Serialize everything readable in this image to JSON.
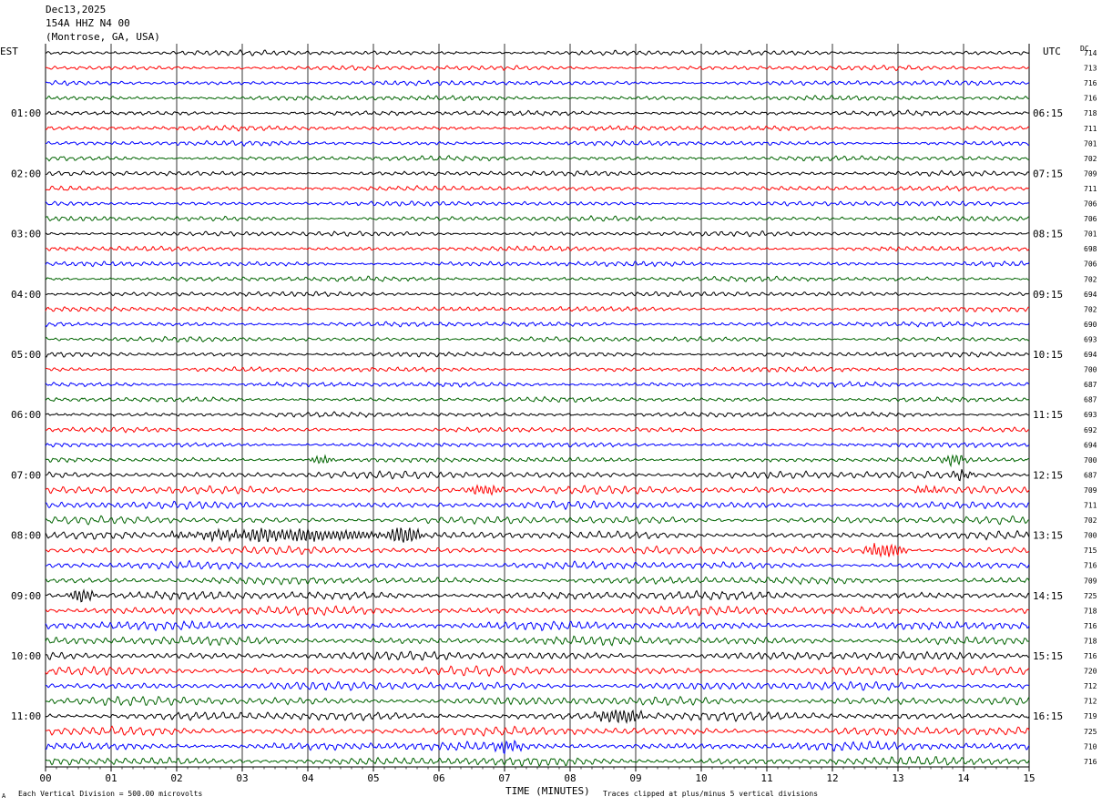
{
  "header": {
    "date": "Dec13,2025",
    "station": "154A HHZ N4 00",
    "location": "(Montrose, GA, USA)"
  },
  "left_zone": "EST",
  "right_zone": "UTC",
  "dc_label": "DC",
  "footer": {
    "scale_note": "Each Vertical Division =  500.00 microvolts",
    "clip_note": "Traces clipped at plus/minus 5 vertical divisions",
    "corner_mark": "A"
  },
  "chart_data": {
    "type": "line",
    "title": "",
    "xlabel": "TIME (MINUTES)",
    "ylabel": "",
    "xlim": [
      0,
      15
    ],
    "x_ticks": [
      "00",
      "01",
      "02",
      "03",
      "04",
      "05",
      "06",
      "07",
      "08",
      "09",
      "10",
      "11",
      "12",
      "13",
      "14",
      "15"
    ],
    "trace_colors": [
      "#000000",
      "#ff0000",
      "#0000ff",
      "#006400"
    ],
    "left_hour_labels": [
      "01:00",
      "02:00",
      "03:00",
      "04:00",
      "05:00",
      "06:00",
      "07:00",
      "08:00",
      "09:00",
      "10:00",
      "11:00"
    ],
    "right_hour_labels": [
      "06:15",
      "07:15",
      "08:15",
      "09:15",
      "10:15",
      "11:15",
      "12:15",
      "13:15",
      "14:15",
      "15:15",
      "16:15"
    ],
    "dc_offsets": [
      714,
      713,
      716,
      716,
      718,
      711,
      701,
      702,
      709,
      711,
      706,
      706,
      701,
      698,
      706,
      702,
      694,
      702,
      690,
      693,
      694,
      700,
      687,
      687,
      693,
      692,
      694,
      700,
      687,
      709,
      711,
      702,
      700,
      715,
      716,
      709,
      725,
      718,
      716,
      718,
      716,
      720,
      712,
      712,
      719,
      725,
      710,
      716
    ],
    "traces_per_hour": 4,
    "trace_count": 48,
    "events": [
      {
        "trace": 27,
        "start_min": 4.0,
        "end_min": 4.4,
        "amp": 1.6
      },
      {
        "trace": 27,
        "start_min": 13.6,
        "end_min": 14.1,
        "amp": 2.6
      },
      {
        "trace": 28,
        "start_min": 13.8,
        "end_min": 14.2,
        "amp": 1.8
      },
      {
        "trace": 29,
        "start_min": 6.4,
        "end_min": 7.0,
        "amp": 2.0
      },
      {
        "trace": 29,
        "start_min": 13.2,
        "end_min": 13.7,
        "amp": 1.3
      },
      {
        "trace": 32,
        "start_min": 1.6,
        "end_min": 5.8,
        "amp": 2.2
      },
      {
        "trace": 32,
        "start_min": 5.2,
        "end_min": 5.8,
        "amp": 3.0
      },
      {
        "trace": 33,
        "start_min": 12.4,
        "end_min": 13.2,
        "amp": 2.6
      },
      {
        "trace": 36,
        "start_min": 0.3,
        "end_min": 0.8,
        "amp": 2.2
      },
      {
        "trace": 44,
        "start_min": 8.3,
        "end_min": 9.2,
        "amp": 3.0
      },
      {
        "trace": 46,
        "start_min": 6.7,
        "end_min": 7.4,
        "amp": 2.2
      }
    ]
  }
}
